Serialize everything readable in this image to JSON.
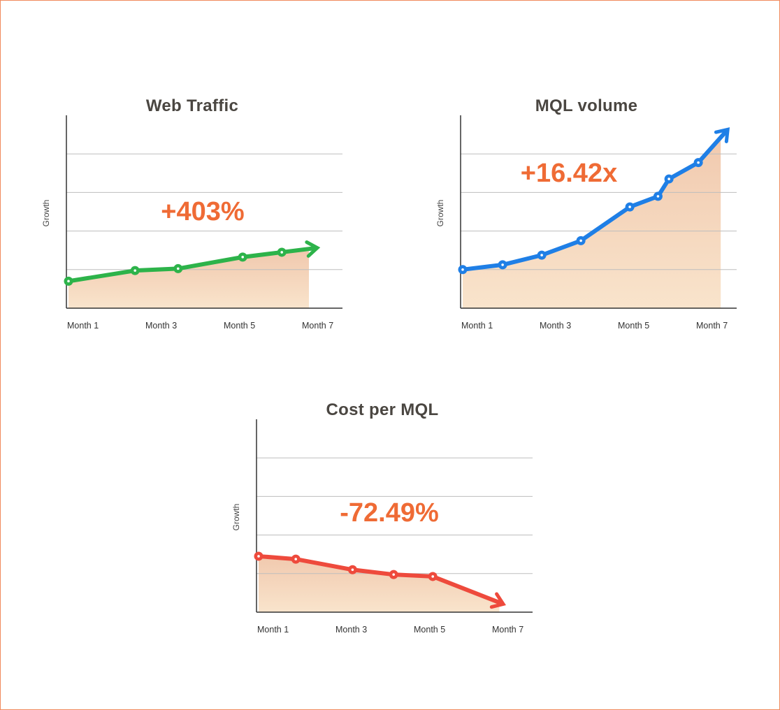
{
  "colors": {
    "frame": "#f08a5d",
    "callout": "#ef6b35",
    "title": "#4a4641",
    "fill_top": "#f1c9ae",
    "fill_bottom": "#f9e4cc",
    "grid": "#bdbdbd",
    "axis": "#333333"
  },
  "chart_data": [
    {
      "id": "web-traffic",
      "type": "area",
      "title": "Web Traffic",
      "callout": "+403%",
      "ylabel": "Growth",
      "xlabel": "",
      "ylim": [
        0,
        100
      ],
      "grid": true,
      "trend": "up",
      "line_color": "#2db34a",
      "x_tick_labels": [
        "Month 1",
        "Month 3",
        "Month 5",
        "Month 7"
      ],
      "x_tick_values": [
        1,
        3,
        5,
        7
      ],
      "x": [
        1,
        2.7,
        3.8,
        5.45,
        6.45
      ],
      "series": [
        {
          "values": [
            14,
            19.5,
            20.5,
            26.5,
            29
          ]
        }
      ],
      "arrow_end": {
        "x": 7.25,
        "y": 31
      }
    },
    {
      "id": "mql-volume",
      "type": "area",
      "title": "MQL volume",
      "callout": "+16.42x",
      "ylabel": "Growth",
      "xlabel": "",
      "ylim": [
        0,
        100
      ],
      "grid": true,
      "trend": "up",
      "line_color": "#1f7fe6",
      "x_tick_labels": [
        "Month 1",
        "Month 3",
        "Month 5",
        "Month 7"
      ],
      "x_tick_values": [
        1,
        3,
        5,
        7
      ],
      "x": [
        1,
        2.02,
        3.02,
        4.02,
        5.27,
        5.99,
        6.27,
        7.02
      ],
      "series": [
        {
          "values": [
            20,
            22.5,
            27.5,
            35,
            52.5,
            58,
            67,
            75.5
          ]
        }
      ],
      "arrow_end": {
        "x": 7.7,
        "y": 91
      }
    },
    {
      "id": "cost-per-mql",
      "type": "area",
      "title": "Cost per MQL",
      "callout": "-72.49%",
      "ylabel": "Growth",
      "xlabel": "",
      "ylim": [
        0,
        100
      ],
      "grid": true,
      "trend": "down",
      "line_color": "#ee4a3c",
      "x_tick_labels": [
        "Month 1",
        "Month 3",
        "Month 5",
        "Month 7"
      ],
      "x_tick_values": [
        1,
        3,
        5,
        7
      ],
      "x": [
        1,
        1.95,
        3.4,
        4.45,
        5.45
      ],
      "series": [
        {
          "values": [
            29,
            27.5,
            22,
            19.5,
            18.5
          ]
        }
      ],
      "arrow_end": {
        "x": 7.15,
        "y": 5
      }
    }
  ]
}
